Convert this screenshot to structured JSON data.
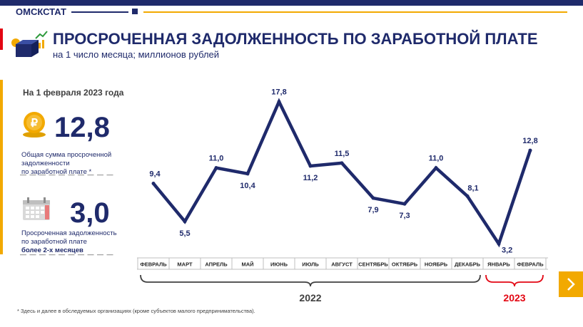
{
  "header": {
    "brand": "ОМСКСТАТ",
    "title": "ПРОСРОЧЕННАЯ ЗАДОЛЖЕННОСТЬ ПО ЗАРАБОТНОЙ ПЛАТЕ",
    "subtitle": "на 1 число месяца; миллионов рублей"
  },
  "sidebar": {
    "date_label": "На 1 февраля 2023 года",
    "stats": [
      {
        "value": "12,8",
        "desc_lines": [
          "Общая сумма просроченной",
          "задолженности",
          "по заработной плате *"
        ],
        "icon": "ruble-coin-icon"
      },
      {
        "value": "3,0",
        "desc_lines": [
          "Просроченная задолженность",
          "по заработной плате"
        ],
        "desc_bold": "более 2-х месяцев",
        "icon": "calendar-icon"
      }
    ]
  },
  "footnote": "* Здесь и далее в обследуемых организациях (кроме субъектов малого предпринимательства).",
  "colors": {
    "line": "#1f2a6b",
    "accent": "#f2a900",
    "red": "#e30613"
  },
  "chart_data": {
    "type": "line",
    "categories": [
      "ФЕВРАЛЬ",
      "МАРТ",
      "АПРЕЛЬ",
      "МАЙ",
      "ИЮНЬ",
      "ИЮЛЬ",
      "АВГУСТ",
      "СЕНТЯБРЬ",
      "ОКТЯБРЬ",
      "НОЯБРЬ",
      "ДЕКАБРЬ",
      "ЯНВАРЬ",
      "ФЕВРАЛЬ"
    ],
    "values": [
      9.4,
      5.5,
      11.0,
      10.4,
      17.8,
      11.2,
      11.5,
      7.9,
      7.3,
      11.0,
      8.1,
      3.2,
      12.8
    ],
    "data_labels": [
      "9,4",
      "5,5",
      "11,0",
      "10,4",
      "17,8",
      "11,2",
      "11,5",
      "7,9",
      "7,3",
      "11,0",
      "8,1",
      "3,2",
      "12,8"
    ],
    "year_groups": [
      {
        "label": "2022",
        "from": 0,
        "to": 10,
        "color": "#404040"
      },
      {
        "label": "2023",
        "from": 11,
        "to": 12,
        "color": "#e30613"
      }
    ],
    "ylim": [
      3,
      18
    ],
    "grid": false,
    "legend": "none"
  }
}
